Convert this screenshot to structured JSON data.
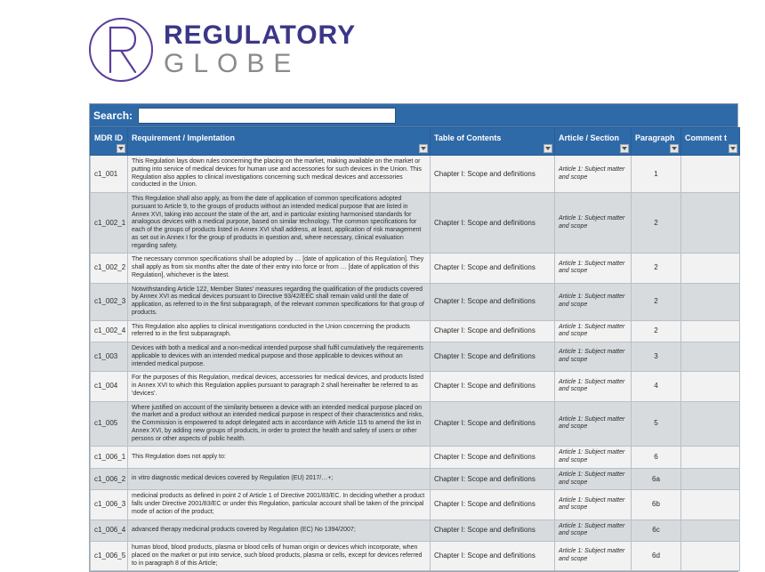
{
  "brand": {
    "top": "REGULATORY",
    "bottom": "GLOBE",
    "logo_stroke": "#5b3e99",
    "title_color": "#3b3787",
    "subtitle_color": "#8a8a8a"
  },
  "search": {
    "label": "Search:",
    "value": ""
  },
  "colors": {
    "header_bg": "#2f6aa8",
    "header_border": "#2a5d94",
    "row_odd": "#f2f2f2",
    "row_even": "#d7dbde",
    "cell_border": "#b8c0c8"
  },
  "columns": [
    {
      "key": "id",
      "label": "MDR ID"
    },
    {
      "key": "req",
      "label": "Requirement / Implentation"
    },
    {
      "key": "toc",
      "label": "Table of Contents"
    },
    {
      "key": "art",
      "label": "Article / Section"
    },
    {
      "key": "par",
      "label": "Paragraph"
    },
    {
      "key": "com",
      "label": "Comment t"
    }
  ],
  "rows": [
    {
      "id": "c1_001",
      "req": "This Regulation lays down rules concerning the placing on the market, making available on the market or putting into service of medical devices for human use and accessories for such devices in the Union. This Regulation also applies to clinical investigations concerning such medical devices and accessories conducted in the Union.",
      "toc": "Chapter I: Scope and definitions",
      "art": "Article 1: Subject matter and scope",
      "par": "1",
      "com": ""
    },
    {
      "id": "c1_002_1",
      "req": "This Regulation shall also apply, as from the date of application of common specifications adopted pursuant to Article 9, to the groups of products without an intended medical purpose that are listed in Annex XVI, taking into account the state of the art, and in particular existing harmonised standards for analogous devices with a medical purpose, based on similar technology. The common specifications for each of the groups of products listed in Annex XVI shall address, at least, application of risk management as set out in Annex I for the group of products in question and, where necessary, clinical evaluation regarding safety.",
      "toc": "Chapter I: Scope and definitions",
      "art": "Article 1: Subject matter and scope",
      "par": "2",
      "com": ""
    },
    {
      "id": "c1_002_2",
      "req": "The necessary common specifications shall be adopted by … [date of application of this Regulation]. They shall apply as from six months after the date of their entry into force or from … [date of application of this Regulation], whichever is the latest.",
      "toc": "Chapter I: Scope and definitions",
      "art": "Article 1: Subject matter and scope",
      "par": "2",
      "com": ""
    },
    {
      "id": "c1_002_3",
      "req": "Notwithstanding Article 122, Member States' measures regarding the qualification of the products covered by Annex XVI as medical devices pursuant to Directive 93/42/EEC shall remain valid until the date of application, as referred to in the first subparagraph, of the relevant common specifications for that group of products.",
      "toc": "Chapter I: Scope and definitions",
      "art": "Article 1: Subject matter and scope",
      "par": "2",
      "com": ""
    },
    {
      "id": "c1_002_4",
      "req": "This Regulation also applies to clinical investigations conducted in the Union concerning the products referred to in the first subparagraph.",
      "toc": "Chapter I: Scope and definitions",
      "art": "Article 1: Subject matter and scope",
      "par": "2",
      "com": ""
    },
    {
      "id": "c1_003",
      "req": "Devices with both a medical and a non-medical intended purpose shall fulfil cumulatively the requirements applicable to devices with an intended medical purpose and those applicable to devices without an intended medical purpose.",
      "toc": "Chapter I: Scope and definitions",
      "art": "Article 1: Subject matter and scope",
      "par": "3",
      "com": ""
    },
    {
      "id": "c1_004",
      "req": "For the purposes of this Regulation, medical devices, accessories for medical devices, and products listed in Annex XVI to which this Regulation applies pursuant to paragraph 2 shall hereinafter be referred to as 'devices'.",
      "toc": "Chapter I: Scope and definitions",
      "art": "Article 1: Subject matter and scope",
      "par": "4",
      "com": ""
    },
    {
      "id": "c1_005",
      "req": "Where justified on account of the similarity between a device with an intended medical purpose placed on the market and a product without an intended medical purpose in respect of their characteristics and risks, the Commission is empowered to adopt delegated acts in accordance with Article 115 to amend the list in Annex XVI, by adding new groups of products, in order to protect the health and safety of users or other persons or other aspects of public health.",
      "toc": "Chapter I: Scope and definitions",
      "art": "Article 1: Subject matter and scope",
      "par": "5",
      "com": ""
    },
    {
      "id": "c1_006_1",
      "req": "This Regulation does not apply to:",
      "toc": "Chapter I: Scope and definitions",
      "art": "Article 1: Subject matter and scope",
      "par": "6",
      "com": ""
    },
    {
      "id": "c1_006_2",
      "req": "in vitro diagnostic medical devices covered by Regulation (EU) 2017/…+;",
      "toc": "Chapter I: Scope and definitions",
      "art": "Article 1: Subject matter and scope",
      "par": "6a",
      "com": ""
    },
    {
      "id": "c1_006_3",
      "req": "medicinal products as defined in point 2 of Article 1 of Directive 2001/83/EC. In deciding whether a product falls under Directive 2001/83/EC or under this Regulation, particular account shall be taken of the principal mode of action of the product;",
      "toc": "Chapter I: Scope and definitions",
      "art": "Article 1: Subject matter and scope",
      "par": "6b",
      "com": ""
    },
    {
      "id": "c1_006_4",
      "req": "advanced therapy medicinal products covered by Regulation (EC) No 1394/2007;",
      "toc": "Chapter I: Scope and definitions",
      "art": "Article 1: Subject matter and scope",
      "par": "6c",
      "com": ""
    },
    {
      "id": "c1_006_5",
      "req": "human blood, blood products, plasma or blood cells of human origin or devices which incorporate, when placed on the market or put into service, such blood products, plasma or cells, except for devices referred to in paragraph 8 of this Article;",
      "toc": "Chapter I: Scope and definitions",
      "art": "Article 1: Subject matter and scope",
      "par": "6d",
      "com": ""
    }
  ]
}
